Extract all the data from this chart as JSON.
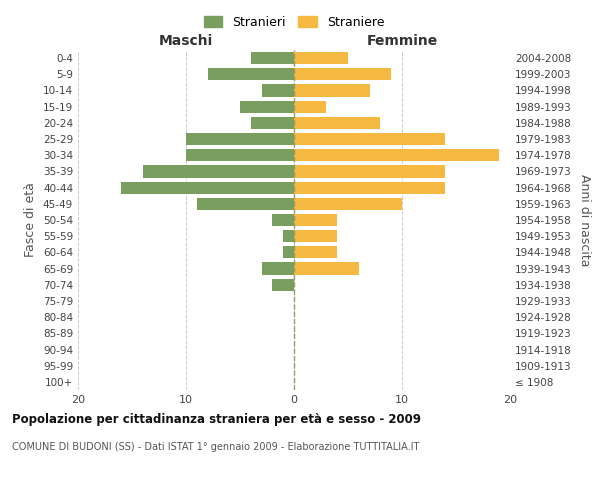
{
  "age_groups": [
    "100+",
    "95-99",
    "90-94",
    "85-89",
    "80-84",
    "75-79",
    "70-74",
    "65-69",
    "60-64",
    "55-59",
    "50-54",
    "45-49",
    "40-44",
    "35-39",
    "30-34",
    "25-29",
    "20-24",
    "15-19",
    "10-14",
    "5-9",
    "0-4"
  ],
  "birth_years": [
    "≤ 1908",
    "1909-1913",
    "1914-1918",
    "1919-1923",
    "1924-1928",
    "1929-1933",
    "1934-1938",
    "1939-1943",
    "1944-1948",
    "1949-1953",
    "1954-1958",
    "1959-1963",
    "1964-1968",
    "1969-1973",
    "1974-1978",
    "1979-1983",
    "1984-1988",
    "1989-1993",
    "1994-1998",
    "1999-2003",
    "2004-2008"
  ],
  "maschi": [
    0,
    0,
    0,
    0,
    0,
    0,
    2,
    3,
    1,
    1,
    2,
    9,
    16,
    14,
    10,
    10,
    4,
    5,
    3,
    8,
    4
  ],
  "femmine": [
    0,
    0,
    0,
    0,
    0,
    0,
    0,
    6,
    4,
    4,
    4,
    10,
    14,
    14,
    19,
    14,
    8,
    3,
    7,
    9,
    5
  ],
  "maschi_color": "#7a9e5f",
  "femmine_color": "#f5b942",
  "title": "Popolazione per cittadinanza straniera per età e sesso - 2009",
  "subtitle": "COMUNE DI BUDONI (SS) - Dati ISTAT 1° gennaio 2009 - Elaborazione TUTTITALIA.IT",
  "xlabel_left": "Maschi",
  "xlabel_right": "Femmine",
  "ylabel_left": "Fasce di età",
  "ylabel_right": "Anni di nascita",
  "legend_maschi": "Stranieri",
  "legend_femmine": "Straniere",
  "xlim": 20,
  "background_color": "#ffffff",
  "grid_color": "#cccccc"
}
